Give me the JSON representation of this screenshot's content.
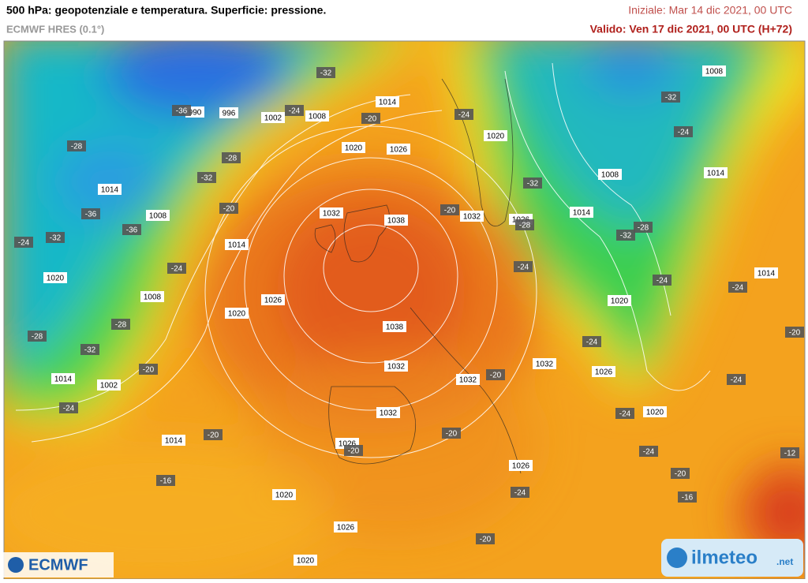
{
  "header": {
    "title": "500 hPa: geopotenziale e temperatura. Superficie: pressione.",
    "subtitle": "ECMWF HRES (0.1°)",
    "init": "Iniziale: Mar 14 dic 2021, 00 UTC",
    "valid": "Valido: Ven 17 dic 2021, 00 UTC (H+72)"
  },
  "logos": {
    "left": "ECMWF",
    "right": "ilmeteo",
    "right_suffix": ".net"
  },
  "map": {
    "pressure_labels": [
      990,
      996,
      1002,
      1008,
      1014,
      1014,
      1008,
      1020,
      1026,
      1032,
      1038,
      1014,
      1020,
      1008,
      1026,
      1020,
      1038,
      1032,
      1014,
      1002,
      1032,
      1032,
      1026,
      1014,
      1020,
      1026,
      1020,
      1026,
      1032,
      1026,
      1020,
      1020,
      1014,
      1008,
      1014,
      1008,
      1014,
      1020,
      1032,
      1026
    ],
    "temperature_labels": [
      -36,
      -32,
      -24,
      -20,
      -28,
      -32,
      -28,
      -36,
      -32,
      -24,
      -36,
      -20,
      -24,
      -28,
      -28,
      -32,
      -20,
      -24,
      -20,
      -16,
      -20,
      -20,
      -20,
      -20,
      -24,
      -28,
      -32,
      -24,
      -32,
      -24,
      -28,
      -32,
      -24,
      -24,
      -24,
      -24,
      -20,
      -24,
      -24,
      -20,
      -16,
      -12,
      -24,
      -20,
      -20
    ]
  }
}
